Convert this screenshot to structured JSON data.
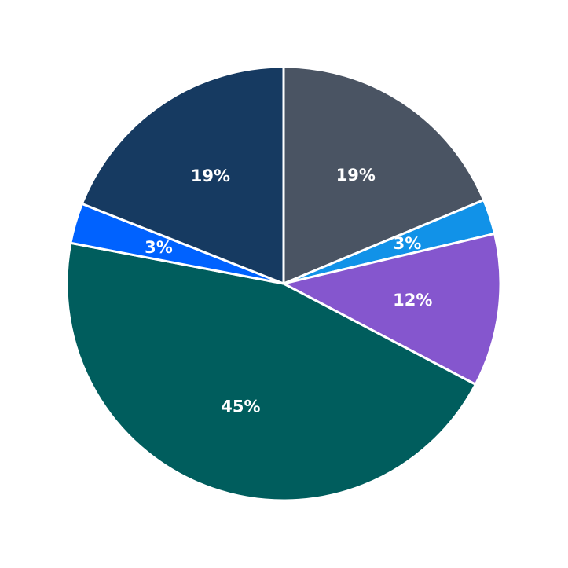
{
  "chart_data": {
    "type": "pie",
    "title": "",
    "start_angle": "12 o'clock",
    "direction": "clockwise",
    "slices": [
      {
        "label": "19%",
        "value": 18.7,
        "color": "#4a5463"
      },
      {
        "label": "3%",
        "value": 2.6,
        "color": "#1192e8"
      },
      {
        "label": "12%",
        "value": 11.4,
        "color": "#8556ce"
      },
      {
        "label": "45%",
        "value": 45.3,
        "color": "#005d5d"
      },
      {
        "label": "3%",
        "value": 3.0,
        "color": "#0062ff"
      },
      {
        "label": "19%",
        "value": 19.0,
        "color": "#163a61"
      }
    ],
    "legend": "none"
  }
}
